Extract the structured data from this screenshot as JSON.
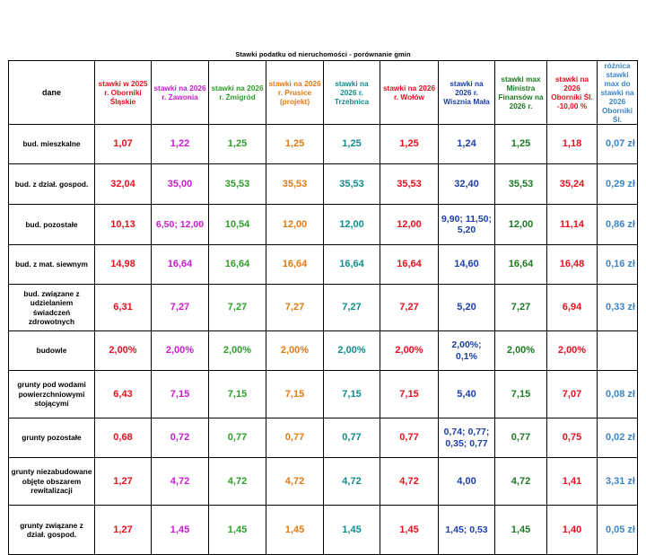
{
  "title": "Stawki podatku od nieruchomości - porównanie gmin",
  "colors": {
    "obornik_2025": "#e8101f",
    "zawonia": "#c81bd0",
    "zmigrod": "#2f9e2a",
    "prusice": "#e07a14",
    "trzebnica": "#138a8a",
    "wolow": "#e8101f",
    "wisznia": "#1b3ea8",
    "ministra": "#1c7a22",
    "obornik_2026": "#e8101f",
    "roznica": "#3d86c6"
  },
  "headers": [
    "dane",
    "stawki w 2025 r. Oborniki Śląskie",
    "stawki na 2026 r. Zawonia",
    "stawki na 2026 r. Żmigród",
    "stawki na 2026 r. Prusice (projekt)",
    "stawki na 2026 r. Trzebnica",
    "stawki na 2026 r. Wołów",
    "stawki na 2026 r. Wisznia Mała",
    "stawki max Ministra Finansów na 2026 r.",
    "stawki na 2026 Oborniki Śl. -10,00 %",
    "różnica stawki max do stawki na 2026 Oborniki Śl."
  ],
  "rows": [
    {
      "label": "bud. mieszkalne",
      "values": [
        "1,07",
        "1,22",
        "1,25",
        "1,25",
        "1,25",
        "1,25",
        "1,24",
        "1,25",
        "1,18",
        "0,07 zł"
      ]
    },
    {
      "label": "bud. z dział. gospod.",
      "values": [
        "32,04",
        "35,00",
        "35,53",
        "35,53",
        "35,53",
        "35,53",
        "32,40",
        "35,53",
        "35,24",
        "0,29 zł"
      ]
    },
    {
      "label": "bud. pozostałe",
      "values": [
        "10,13",
        "6,50; 12,00",
        "10,54",
        "12,00",
        "12,00",
        "12,00",
        "9,90; 11,50; 5,20",
        "12,00",
        "11,14",
        "0,86 zł"
      ]
    },
    {
      "label": "bud. z mat. siewnym",
      "values": [
        "14,98",
        "16,64",
        "16,64",
        "16,64",
        "16,64",
        "16,64",
        "14,60",
        "16,64",
        "16,48",
        "0,16 zł"
      ]
    },
    {
      "label": "bud. związane z udzielaniem świadczeń zdrowotnych",
      "values": [
        "6,31",
        "7,27",
        "7,27",
        "7,27",
        "7,27",
        "7,27",
        "5,20",
        "7,27",
        "6,94",
        "0,33 zł"
      ]
    },
    {
      "label": "budowle",
      "values": [
        "2,00%",
        "2,00%",
        "2,00%",
        "2,00%",
        "2,00%",
        "2,00%",
        "2,00%; 0,1%",
        "2,00%",
        "2,00%",
        ""
      ]
    },
    {
      "label": "grunty pod wodami powierzchniowymi stojącymi",
      "values": [
        "6,43",
        "7,15",
        "7,15",
        "7,15",
        "7,15",
        "7,15",
        "5,40",
        "7,15",
        "7,07",
        "0,08 zł"
      ]
    },
    {
      "label": "grunty pozostałe",
      "values": [
        "0,68",
        "0,72",
        "0,77",
        "0,77",
        "0,77",
        "0,77",
        "0,74; 0,77; 0,35; 0,77",
        "0,77",
        "0,75",
        "0,02 zł"
      ]
    },
    {
      "label": "grunty niezabudowane objęte obszarem rewitalizacji",
      "values": [
        "1,27",
        "4,72",
        "4,72",
        "4,72",
        "4,72",
        "4,72",
        "4,00",
        "4,72",
        "1,41",
        "3,31 zł"
      ]
    },
    {
      "label": "grunty związane z dział. gospod.",
      "values": [
        "1,27",
        "1,45",
        "1,45",
        "1,45",
        "1,45",
        "1,45",
        "1,45; 0,53",
        "1,45",
        "1,40",
        "0,05 zł"
      ]
    }
  ]
}
